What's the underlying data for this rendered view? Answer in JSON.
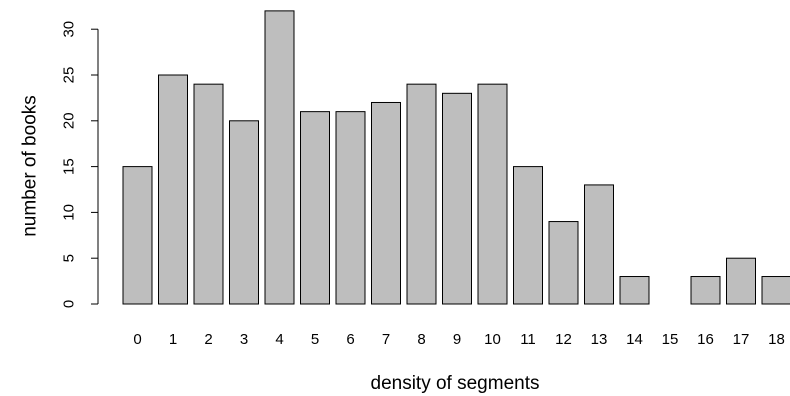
{
  "chart_data": {
    "type": "bar",
    "title": "",
    "xlabel": "density of segments",
    "ylabel": "number of books",
    "categories": [
      "0",
      "1",
      "2",
      "3",
      "4",
      "5",
      "6",
      "7",
      "8",
      "9",
      "10",
      "11",
      "12",
      "13",
      "14",
      "15",
      "16",
      "17",
      "18"
    ],
    "values": [
      15,
      25,
      24,
      20,
      32,
      21,
      21,
      22,
      24,
      23,
      24,
      15,
      9,
      13,
      3,
      0,
      3,
      5,
      3
    ],
    "ylim": [
      0,
      32
    ],
    "yticks": [
      0,
      5,
      10,
      15,
      20,
      25,
      30
    ],
    "grid": false,
    "bar_color": "#bebebe",
    "legend": "none"
  }
}
